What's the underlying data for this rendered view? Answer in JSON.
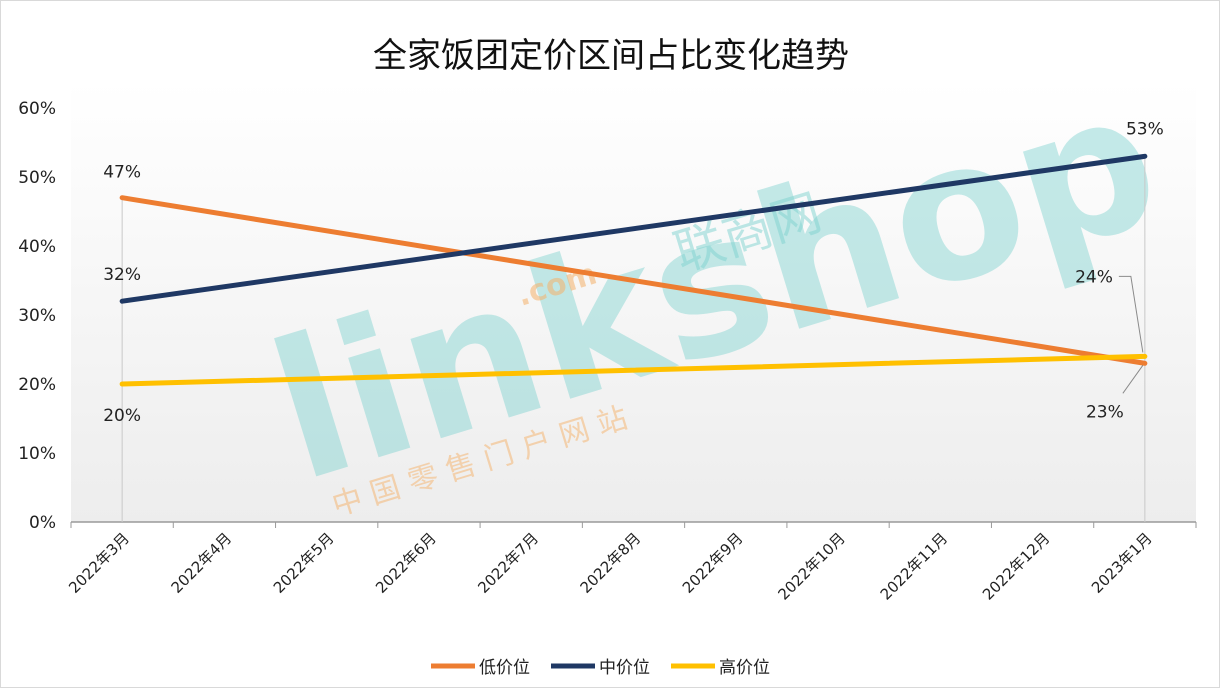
{
  "chart_data": {
    "type": "line",
    "title": "全家饭团定价区间占比变化趋势",
    "categories": [
      "2022年3月",
      "2022年4月",
      "2022年5月",
      "2022年6月",
      "2022年7月",
      "2022年8月",
      "2022年9月",
      "2022年10月",
      "2022年11月",
      "2022年12月",
      "2023年1月"
    ],
    "ylim": [
      0,
      60
    ],
    "yticks": [
      "0%",
      "10%",
      "20%",
      "30%",
      "40%",
      "50%",
      "60%"
    ],
    "grid": false,
    "legend_position": "bottom",
    "series": [
      {
        "name": "低价位",
        "color": "#ED7D31",
        "start": 47,
        "end": 23,
        "labels": [
          "47%",
          "23%"
        ]
      },
      {
        "name": "中价位",
        "color": "#1F3864",
        "start": 32,
        "end": 53,
        "labels": [
          "32%",
          "53%"
        ]
      },
      {
        "name": "高价位",
        "color": "#FFC000",
        "start": 20,
        "end": 24,
        "labels": [
          "20%",
          "24%"
        ]
      }
    ]
  },
  "watermark": {
    "brand": "linkshop",
    "dotcom": ".com",
    "cn_name": "联商网",
    "tagline": "中 国 零 售 门 户 网 站",
    "color": "#7fd3d0",
    "accent": "#f5b26b"
  }
}
